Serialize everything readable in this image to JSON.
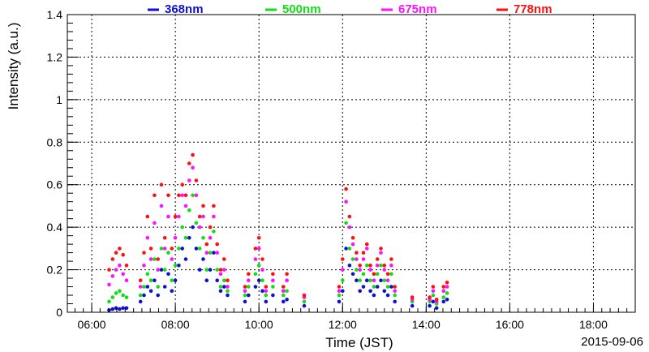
{
  "chart_data": {
    "type": "scatter",
    "title": "",
    "xlabel": "Time (JST)",
    "ylabel": "Intensity (a.u.)",
    "date": "2015-09-06",
    "xlim": [
      "05:25",
      "19:00"
    ],
    "ylim": [
      0,
      1.4
    ],
    "x_ticks": [
      "06:00",
      "08:00",
      "10:00",
      "12:00",
      "14:00",
      "16:00",
      "18:00"
    ],
    "y_ticks": [
      "0",
      "0.2",
      "0.4",
      "0.6",
      "0.8",
      "1",
      "1.2",
      "1.4"
    ],
    "grid": true,
    "legend_position": "top",
    "series": [
      {
        "name": "368nm",
        "color": "#1010d0",
        "points": [
          [
            "06:25",
            0.01
          ],
          [
            "06:30",
            0.015
          ],
          [
            "06:35",
            0.02
          ],
          [
            "06:40",
            0.015
          ],
          [
            "06:45",
            0.02
          ],
          [
            "06:50",
            0.02
          ],
          [
            "07:10",
            0.05
          ],
          [
            "07:15",
            0.08
          ],
          [
            "07:20",
            0.12
          ],
          [
            "07:25",
            0.1
          ],
          [
            "07:30",
            0.15
          ],
          [
            "07:35",
            0.08
          ],
          [
            "07:40",
            0.2
          ],
          [
            "07:45",
            0.12
          ],
          [
            "07:50",
            0.18
          ],
          [
            "07:55",
            0.1
          ],
          [
            "08:00",
            0.15
          ],
          [
            "08:05",
            0.22
          ],
          [
            "08:10",
            0.3
          ],
          [
            "08:15",
            0.25
          ],
          [
            "08:20",
            0.35
          ],
          [
            "08:25",
            0.4
          ],
          [
            "08:30",
            0.3
          ],
          [
            "08:35",
            0.2
          ],
          [
            "08:40",
            0.25
          ],
          [
            "08:45",
            0.15
          ],
          [
            "08:50",
            0.2
          ],
          [
            "08:55",
            0.28
          ],
          [
            "09:00",
            0.15
          ],
          [
            "09:05",
            0.1
          ],
          [
            "09:10",
            0.12
          ],
          [
            "09:15",
            0.08
          ],
          [
            "09:40",
            0.05
          ],
          [
            "09:45",
            0.08
          ],
          [
            "09:55",
            0.12
          ],
          [
            "10:00",
            0.15
          ],
          [
            "10:05",
            0.1
          ],
          [
            "10:10",
            0.05
          ],
          [
            "10:20",
            0.08
          ],
          [
            "10:35",
            0.05
          ],
          [
            "10:40",
            0.06
          ],
          [
            "11:05",
            0.03
          ],
          [
            "11:55",
            0.05
          ],
          [
            "12:00",
            0.1
          ],
          [
            "12:05",
            0.3
          ],
          [
            "12:10",
            0.22
          ],
          [
            "12:15",
            0.18
          ],
          [
            "12:20",
            0.15
          ],
          [
            "12:25",
            0.1
          ],
          [
            "12:30",
            0.12
          ],
          [
            "12:35",
            0.15
          ],
          [
            "12:40",
            0.1
          ],
          [
            "12:45",
            0.08
          ],
          [
            "12:50",
            0.12
          ],
          [
            "12:55",
            0.15
          ],
          [
            "13:00",
            0.1
          ],
          [
            "13:05",
            0.08
          ],
          [
            "13:10",
            0.12
          ],
          [
            "13:15",
            0.05
          ],
          [
            "13:40",
            0.03
          ],
          [
            "14:05",
            0.03
          ],
          [
            "14:10",
            0.05
          ],
          [
            "14:15",
            0.02
          ],
          [
            "14:25",
            0.05
          ],
          [
            "14:30",
            0.06
          ]
        ]
      },
      {
        "name": "500nm",
        "color": "#10e010",
        "points": [
          [
            "06:25",
            0.05
          ],
          [
            "06:30",
            0.07
          ],
          [
            "06:35",
            0.09
          ],
          [
            "06:40",
            0.1
          ],
          [
            "06:45",
            0.08
          ],
          [
            "06:50",
            0.07
          ],
          [
            "07:10",
            0.08
          ],
          [
            "07:15",
            0.12
          ],
          [
            "07:20",
            0.18
          ],
          [
            "07:25",
            0.15
          ],
          [
            "07:30",
            0.25
          ],
          [
            "07:35",
            0.12
          ],
          [
            "07:40",
            0.3
          ],
          [
            "07:45",
            0.2
          ],
          [
            "07:50",
            0.28
          ],
          [
            "07:55",
            0.15
          ],
          [
            "08:00",
            0.22
          ],
          [
            "08:05",
            0.3
          ],
          [
            "08:10",
            0.4
          ],
          [
            "08:15",
            0.35
          ],
          [
            "08:20",
            0.48
          ],
          [
            "08:25",
            0.55
          ],
          [
            "08:30",
            0.42
          ],
          [
            "08:35",
            0.3
          ],
          [
            "08:40",
            0.35
          ],
          [
            "08:45",
            0.2
          ],
          [
            "08:50",
            0.28
          ],
          [
            "08:55",
            0.38
          ],
          [
            "09:00",
            0.2
          ],
          [
            "09:05",
            0.12
          ],
          [
            "09:10",
            0.15
          ],
          [
            "09:15",
            0.1
          ],
          [
            "09:40",
            0.08
          ],
          [
            "09:45",
            0.12
          ],
          [
            "09:55",
            0.18
          ],
          [
            "10:00",
            0.22
          ],
          [
            "10:05",
            0.15
          ],
          [
            "10:10",
            0.08
          ],
          [
            "10:20",
            0.12
          ],
          [
            "10:35",
            0.08
          ],
          [
            "10:40",
            0.1
          ],
          [
            "11:05",
            0.05
          ],
          [
            "11:55",
            0.08
          ],
          [
            "12:00",
            0.15
          ],
          [
            "12:05",
            0.42
          ],
          [
            "12:10",
            0.3
          ],
          [
            "12:15",
            0.25
          ],
          [
            "12:20",
            0.2
          ],
          [
            "12:25",
            0.15
          ],
          [
            "12:30",
            0.18
          ],
          [
            "12:35",
            0.22
          ],
          [
            "12:40",
            0.15
          ],
          [
            "12:45",
            0.12
          ],
          [
            "12:50",
            0.18
          ],
          [
            "12:55",
            0.22
          ],
          [
            "13:00",
            0.15
          ],
          [
            "13:05",
            0.12
          ],
          [
            "13:10",
            0.18
          ],
          [
            "13:15",
            0.08
          ],
          [
            "13:40",
            0.05
          ],
          [
            "14:05",
            0.05
          ],
          [
            "14:10",
            0.08
          ],
          [
            "14:15",
            0.04
          ],
          [
            "14:25",
            0.07
          ],
          [
            "14:30",
            0.09
          ]
        ]
      },
      {
        "name": "675nm",
        "color": "#ff10ff",
        "points": [
          [
            "06:25",
            0.13
          ],
          [
            "06:30",
            0.17
          ],
          [
            "06:35",
            0.2
          ],
          [
            "06:40",
            0.22
          ],
          [
            "06:45",
            0.18
          ],
          [
            "06:50",
            0.15
          ],
          [
            "07:10",
            0.12
          ],
          [
            "07:15",
            0.22
          ],
          [
            "07:20",
            0.35
          ],
          [
            "07:25",
            0.25
          ],
          [
            "07:30",
            0.42
          ],
          [
            "07:35",
            0.2
          ],
          [
            "07:40",
            0.5
          ],
          [
            "07:45",
            0.3
          ],
          [
            "07:50",
            0.45
          ],
          [
            "07:55",
            0.25
          ],
          [
            "08:00",
            0.35
          ],
          [
            "08:05",
            0.45
          ],
          [
            "08:10",
            0.55
          ],
          [
            "08:15",
            0.5
          ],
          [
            "08:20",
            0.62
          ],
          [
            "08:25",
            0.68
          ],
          [
            "08:30",
            0.55
          ],
          [
            "08:35",
            0.4
          ],
          [
            "08:40",
            0.45
          ],
          [
            "08:45",
            0.28
          ],
          [
            "08:50",
            0.35
          ],
          [
            "08:55",
            0.45
          ],
          [
            "09:00",
            0.28
          ],
          [
            "09:05",
            0.18
          ],
          [
            "09:10",
            0.2
          ],
          [
            "09:15",
            0.12
          ],
          [
            "09:40",
            0.1
          ],
          [
            "09:45",
            0.15
          ],
          [
            "09:55",
            0.25
          ],
          [
            "10:00",
            0.3
          ],
          [
            "10:05",
            0.2
          ],
          [
            "10:10",
            0.1
          ],
          [
            "10:20",
            0.15
          ],
          [
            "10:35",
            0.1
          ],
          [
            "10:40",
            0.15
          ],
          [
            "11:05",
            0.07
          ],
          [
            "11:55",
            0.1
          ],
          [
            "12:00",
            0.2
          ],
          [
            "12:05",
            0.52
          ],
          [
            "12:10",
            0.4
          ],
          [
            "12:15",
            0.32
          ],
          [
            "12:20",
            0.25
          ],
          [
            "12:25",
            0.2
          ],
          [
            "12:30",
            0.25
          ],
          [
            "12:35",
            0.3
          ],
          [
            "12:40",
            0.2
          ],
          [
            "12:45",
            0.15
          ],
          [
            "12:50",
            0.22
          ],
          [
            "12:55",
            0.28
          ],
          [
            "13:00",
            0.2
          ],
          [
            "13:05",
            0.15
          ],
          [
            "13:10",
            0.22
          ],
          [
            "13:15",
            0.1
          ],
          [
            "13:40",
            0.06
          ],
          [
            "14:05",
            0.06
          ],
          [
            "14:10",
            0.1
          ],
          [
            "14:15",
            0.05
          ],
          [
            "14:25",
            0.1
          ],
          [
            "14:30",
            0.12
          ]
        ]
      },
      {
        "name": "778nm",
        "color": "#ff1010",
        "points": [
          [
            "06:25",
            0.2
          ],
          [
            "06:30",
            0.25
          ],
          [
            "06:35",
            0.28
          ],
          [
            "06:40",
            0.3
          ],
          [
            "06:45",
            0.27
          ],
          [
            "06:50",
            0.22
          ],
          [
            "07:10",
            0.15
          ],
          [
            "07:15",
            0.28
          ],
          [
            "07:20",
            0.45
          ],
          [
            "07:25",
            0.3
          ],
          [
            "07:30",
            0.55
          ],
          [
            "07:35",
            0.25
          ],
          [
            "07:40",
            0.6
          ],
          [
            "07:45",
            0.35
          ],
          [
            "07:50",
            0.55
          ],
          [
            "07:55",
            0.3
          ],
          [
            "08:00",
            0.45
          ],
          [
            "08:05",
            0.55
          ],
          [
            "08:10",
            0.6
          ],
          [
            "08:15",
            0.55
          ],
          [
            "08:20",
            0.7
          ],
          [
            "08:25",
            0.74
          ],
          [
            "08:30",
            0.62
          ],
          [
            "08:35",
            0.45
          ],
          [
            "08:40",
            0.5
          ],
          [
            "08:45",
            0.32
          ],
          [
            "08:50",
            0.4
          ],
          [
            "08:55",
            0.5
          ],
          [
            "09:00",
            0.32
          ],
          [
            "09:05",
            0.2
          ],
          [
            "09:10",
            0.25
          ],
          [
            "09:15",
            0.15
          ],
          [
            "09:40",
            0.12
          ],
          [
            "09:45",
            0.18
          ],
          [
            "09:55",
            0.3
          ],
          [
            "10:00",
            0.35
          ],
          [
            "10:05",
            0.25
          ],
          [
            "10:10",
            0.12
          ],
          [
            "10:20",
            0.18
          ],
          [
            "10:35",
            0.12
          ],
          [
            "10:40",
            0.18
          ],
          [
            "11:05",
            0.08
          ],
          [
            "11:55",
            0.12
          ],
          [
            "12:00",
            0.25
          ],
          [
            "12:05",
            0.58
          ],
          [
            "12:10",
            0.45
          ],
          [
            "12:15",
            0.35
          ],
          [
            "12:20",
            0.28
          ],
          [
            "12:25",
            0.22
          ],
          [
            "12:30",
            0.28
          ],
          [
            "12:35",
            0.32
          ],
          [
            "12:40",
            0.22
          ],
          [
            "12:45",
            0.18
          ],
          [
            "12:50",
            0.25
          ],
          [
            "12:55",
            0.3
          ],
          [
            "13:00",
            0.22
          ],
          [
            "13:05",
            0.18
          ],
          [
            "13:10",
            0.25
          ],
          [
            "13:15",
            0.12
          ],
          [
            "13:40",
            0.07
          ],
          [
            "14:05",
            0.07
          ],
          [
            "14:10",
            0.12
          ],
          [
            "14:15",
            0.06
          ],
          [
            "14:25",
            0.12
          ],
          [
            "14:30",
            0.14
          ]
        ]
      }
    ]
  }
}
